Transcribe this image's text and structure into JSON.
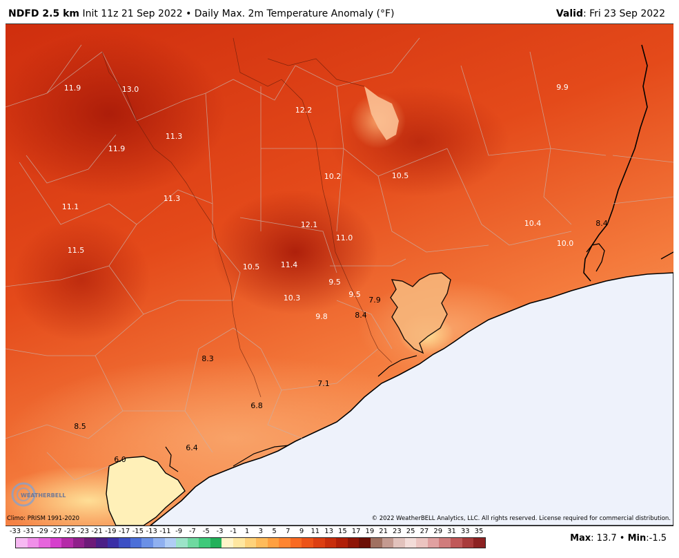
{
  "header": {
    "model": "NDFD 2.5 km",
    "init": "Init 11z 21 Sep 2022",
    "bullet": "•",
    "product": "Daily Max. 2m Temperature Anomaly (°F)",
    "valid_label": "Valid",
    "valid_value": ": Fri 23 Sep 2022"
  },
  "map": {
    "labels": [
      {
        "text": "11.9"
      },
      {
        "text": "13.0"
      },
      {
        "text": "12.2"
      },
      {
        "text": "9.9"
      },
      {
        "text": "11.3"
      },
      {
        "text": "11.9"
      },
      {
        "text": "10.2"
      },
      {
        "text": "10.5"
      },
      {
        "text": "11.3"
      },
      {
        "text": "11.1"
      },
      {
        "text": "12.1"
      },
      {
        "text": "10.4"
      },
      {
        "text": "8.4"
      },
      {
        "text": "11.0"
      },
      {
        "text": "10.0"
      },
      {
        "text": "11.5"
      },
      {
        "text": "10.5"
      },
      {
        "text": "11.4"
      },
      {
        "text": "9.5"
      },
      {
        "text": "9.5"
      },
      {
        "text": "7.9"
      },
      {
        "text": "10.3"
      },
      {
        "text": "9.8"
      },
      {
        "text": "8.4"
      },
      {
        "text": "8.3"
      },
      {
        "text": "7.1"
      },
      {
        "text": "6.8"
      },
      {
        "text": "8.5"
      },
      {
        "text": "6.4"
      },
      {
        "text": "6.0"
      }
    ],
    "water_color": "#eef2fb"
  },
  "logo": {
    "text": "WEATHERBELL"
  },
  "footer": {
    "climo": "Climo: PRISM 1991-2020",
    "copyright": "© 2022 WeatherBELL Analytics, LLC. All rights reserved. License required for commercial distribution."
  },
  "legend": {
    "ticks": [
      "-33",
      "-31",
      "-29",
      "-27",
      "-25",
      "-23",
      "-21",
      "-19",
      "-17",
      "-15",
      "-13",
      "-11",
      "-9",
      "-7",
      "-5",
      "-3",
      "-1",
      "1",
      "3",
      "5",
      "7",
      "9",
      "11",
      "13",
      "15",
      "17",
      "19",
      "21",
      "23",
      "25",
      "27",
      "29",
      "31",
      "33",
      "35"
    ],
    "colors": [
      "#f7b9f2",
      "#f08fe8",
      "#e665dc",
      "#d63fcc",
      "#b52aa8",
      "#8f1f8a",
      "#6d1a78",
      "#4b1f86",
      "#3a2fa6",
      "#3c4fc4",
      "#4b6fd8",
      "#6a90e6",
      "#8fb0f0",
      "#b0cdf5",
      "#9ce3c8",
      "#6fd9a0",
      "#3ec97a",
      "#22b05a",
      "#fff4c8",
      "#ffe7a0",
      "#ffd27a",
      "#ffbb5a",
      "#ffa040",
      "#ff8530",
      "#f86a22",
      "#ec5318",
      "#dc3f12",
      "#c82e0c",
      "#b01f08",
      "#8e1506",
      "#6c0f05",
      "#a07060",
      "#c49a90",
      "#e2c2bc",
      "#f3dcd8",
      "#ecc4c0",
      "#e0a0a0",
      "#d07c7c",
      "#c05858",
      "#a83a3a",
      "#8c2222"
    ],
    "max_label": "Max",
    "max_value": ": 13.7",
    "min_label": "Min",
    "min_value": ":-1.5",
    "bullet": "•"
  }
}
